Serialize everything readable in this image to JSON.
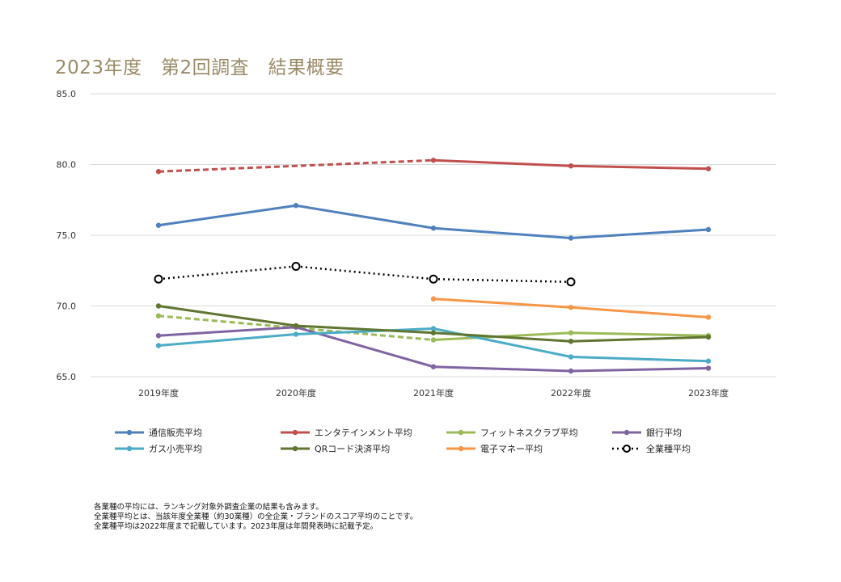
{
  "title": "2023年度　第2回調査　結果概要",
  "chart_data": {
    "type": "line",
    "categories": [
      "2019年度",
      "2020年度",
      "2021年度",
      "2022年度",
      "2023年度"
    ],
    "ylim": [
      65,
      85
    ],
    "yticks": [
      "65.0",
      "70.0",
      "75.0",
      "80.0",
      "85.0"
    ],
    "grid": true,
    "legend_position": "bottom",
    "series": [
      {
        "name": "通信販売平均",
        "color": "#4f81bd",
        "values": [
          75.7,
          77.1,
          75.5,
          74.8,
          75.4
        ]
      },
      {
        "name": "エンタテインメント平均",
        "color": "#c0504d",
        "values": [
          79.5,
          null,
          80.3,
          79.9,
          79.7
        ],
        "dashed_gap": true
      },
      {
        "name": "フィットネスクラブ平均",
        "color": "#9bbb59",
        "values": [
          69.3,
          null,
          67.6,
          68.1,
          67.9
        ],
        "dashed_gap": true
      },
      {
        "name": "銀行平均",
        "color": "#8064a2",
        "values": [
          67.9,
          68.5,
          65.7,
          65.4,
          65.6
        ]
      },
      {
        "name": "ガス小売平均",
        "color": "#4bacc6",
        "values": [
          67.2,
          68.0,
          68.4,
          66.4,
          66.1
        ]
      },
      {
        "name": "QRコード決済平均",
        "color": "#5f7530",
        "values": [
          70.0,
          68.6,
          68.1,
          67.5,
          67.8
        ]
      },
      {
        "name": "電子マネー平均",
        "color": "#f79646",
        "values": [
          null,
          null,
          70.5,
          69.9,
          69.2
        ]
      },
      {
        "name": "全業種平均",
        "color": "#000000",
        "dotted": true,
        "values": [
          71.9,
          72.8,
          71.9,
          71.7,
          null
        ]
      }
    ]
  },
  "notes": [
    "各業種の平均には、ランキング対象外調査企業の結果も含みます。",
    "全業種平均とは、当該年度全業種（約30業種）の全企業・ブランドのスコア平均のことです。",
    "全業種平均は2022年度まで記載しています。2023年度は年間発表時に記載予定。"
  ]
}
